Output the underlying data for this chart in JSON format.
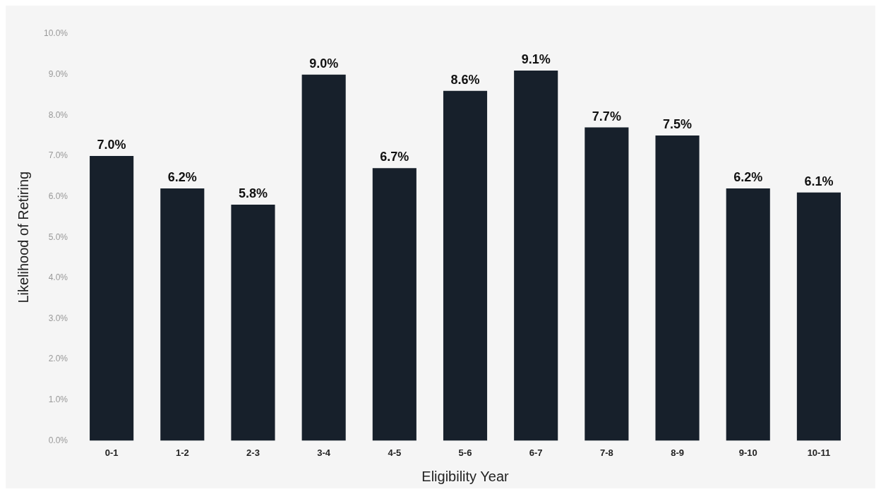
{
  "chart_data": {
    "type": "bar",
    "xlabel": "Eligibility Year",
    "ylabel": "Likelihood of Retiring",
    "categories": [
      "0-1",
      "1-2",
      "2-3",
      "3-4",
      "4-5",
      "5-6",
      "6-7",
      "7-8",
      "8-9",
      "9-10",
      "10-11"
    ],
    "values": [
      7.0,
      6.2,
      5.8,
      9.0,
      6.7,
      8.6,
      9.1,
      7.7,
      7.5,
      6.2,
      6.1
    ],
    "value_labels": [
      "7.0%",
      "6.2%",
      "5.8%",
      "9.0%",
      "6.7%",
      "8.6%",
      "9.1%",
      "7.7%",
      "7.5%",
      "6.2%",
      "6.1%"
    ],
    "color": "#17202b",
    "ylim": [
      0,
      10
    ],
    "yticks": [
      {
        "value": 0,
        "label": "0.0%"
      },
      {
        "value": 1,
        "label": "1.0%"
      },
      {
        "value": 2,
        "label": "2.0%"
      },
      {
        "value": 3,
        "label": "3.0%"
      },
      {
        "value": 4,
        "label": "4.0%"
      },
      {
        "value": 5,
        "label": "5.0%"
      },
      {
        "value": 6,
        "label": "6.0%"
      },
      {
        "value": 7,
        "label": "7.0%"
      },
      {
        "value": 8,
        "label": "8.0%"
      },
      {
        "value": 9,
        "label": "9.0%"
      },
      {
        "value": 10,
        "label": "10.0%"
      }
    ],
    "grid": false,
    "legend": false
  }
}
